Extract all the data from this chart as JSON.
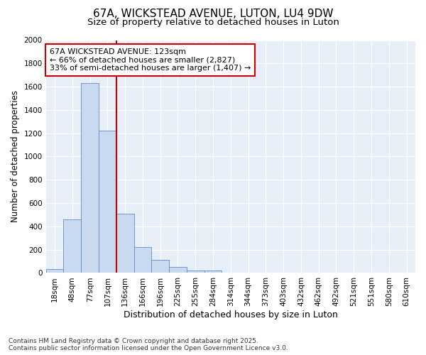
{
  "title1": "67A, WICKSTEAD AVENUE, LUTON, LU4 9DW",
  "title2": "Size of property relative to detached houses in Luton",
  "xlabel": "Distribution of detached houses by size in Luton",
  "ylabel": "Number of detached properties",
  "categories": [
    "18sqm",
    "48sqm",
    "77sqm",
    "107sqm",
    "136sqm",
    "166sqm",
    "196sqm",
    "225sqm",
    "255sqm",
    "284sqm",
    "314sqm",
    "344sqm",
    "373sqm",
    "403sqm",
    "432sqm",
    "462sqm",
    "492sqm",
    "521sqm",
    "551sqm",
    "580sqm",
    "610sqm"
  ],
  "values": [
    35,
    460,
    1630,
    1220,
    510,
    225,
    115,
    50,
    20,
    20,
    5,
    0,
    0,
    0,
    0,
    0,
    0,
    0,
    0,
    0,
    0
  ],
  "bar_color": "#c9d9ef",
  "bar_edge_color": "#5b8ec4",
  "vline_color": "#cc0000",
  "vline_x_idx": 3.5,
  "annotation_text": "67A WICKSTEAD AVENUE: 123sqm\n← 66% of detached houses are smaller (2,827)\n33% of semi-detached houses are larger (1,407) →",
  "annotation_box_facecolor": "#ffffff",
  "annotation_box_edgecolor": "#cc0000",
  "ylim": [
    0,
    2000
  ],
  "yticks": [
    0,
    200,
    400,
    600,
    800,
    1000,
    1200,
    1400,
    1600,
    1800,
    2000
  ],
  "footer1": "Contains HM Land Registry data © Crown copyright and database right 2025.",
  "footer2": "Contains public sector information licensed under the Open Government Licence v3.0.",
  "fig_bg_color": "#ffffff",
  "plot_bg_color": "#e8eef8",
  "grid_color": "#ffffff",
  "title1_fontsize": 11,
  "title2_fontsize": 9.5,
  "tick_fontsize": 7.5,
  "xlabel_fontsize": 9,
  "ylabel_fontsize": 8.5,
  "annotation_fontsize": 8,
  "footer_fontsize": 6.5
}
